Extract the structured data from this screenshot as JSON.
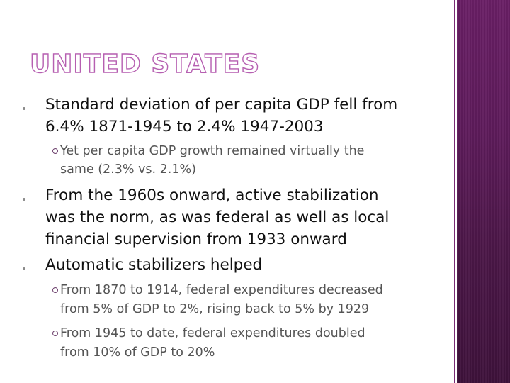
{
  "slide": {
    "title": "UNITED STATES",
    "bullets": [
      {
        "lines": [
          "Standard deviation of per capita GDP fell from",
          "6.4% 1871-1945 to 2.4% 1947-2003"
        ],
        "subbullets": [
          {
            "lines": [
              "Yet per capita GDP growth remained virtually the",
              "same (2.3% vs. 2.1%)"
            ]
          }
        ]
      },
      {
        "lines": [
          "From the 1960s onward, active stabilization",
          "was the norm, as was federal as well as local",
          "financial supervision from 1933 onward"
        ],
        "subbullets": []
      },
      {
        "lines": [
          "Automatic stabilizers helped"
        ],
        "subbullets": [
          {
            "lines": [
              "From 1870 to 1914, federal expenditures decreased",
              "from 5% of GDP to 2%, rising back to 5% by 1929"
            ]
          },
          {
            "lines": [
              "From 1945 to date, federal expenditures doubled",
              "from 10% of GDP to 20%"
            ]
          }
        ]
      }
    ]
  },
  "colors": {
    "title_outline": "#b65fb1",
    "side_band": "#5e1b5b",
    "main_text": "#111111",
    "sub_text": "#555555"
  }
}
